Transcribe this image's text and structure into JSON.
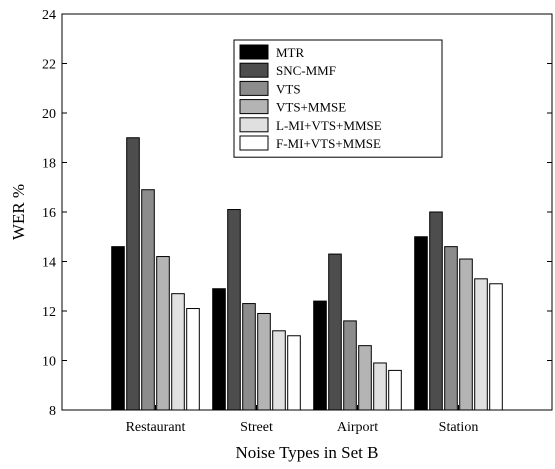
{
  "chart_data": {
    "type": "bar",
    "title": "",
    "xlabel": "Noise Types in Set B",
    "ylabel": "WER %",
    "ylim": [
      8,
      24
    ],
    "yticks": [
      8,
      10,
      12,
      14,
      16,
      18,
      20,
      22,
      24
    ],
    "grid": false,
    "legend_position": "top-center",
    "categories": [
      "Restaurant",
      "Street",
      "Airport",
      "Station"
    ],
    "series": [
      {
        "name": "MTR",
        "color": "#000000",
        "values": [
          14.6,
          12.9,
          12.4,
          15.0
        ]
      },
      {
        "name": "SNC-MMF",
        "color": "#4d4d4d",
        "values": [
          19.0,
          16.1,
          14.3,
          16.0
        ]
      },
      {
        "name": "VTS",
        "color": "#8c8c8c",
        "values": [
          16.9,
          12.3,
          11.6,
          14.6
        ]
      },
      {
        "name": "VTS+MMSE",
        "color": "#b4b4b4",
        "values": [
          14.2,
          11.9,
          10.6,
          14.1
        ]
      },
      {
        "name": "L-MI+VTS+MMSE",
        "color": "#e0e0e0",
        "values": [
          12.7,
          11.2,
          9.9,
          13.3
        ]
      },
      {
        "name": "F-MI+VTS+MMSE",
        "color": "#ffffff",
        "values": [
          12.1,
          11.0,
          9.6,
          13.1
        ]
      }
    ]
  }
}
